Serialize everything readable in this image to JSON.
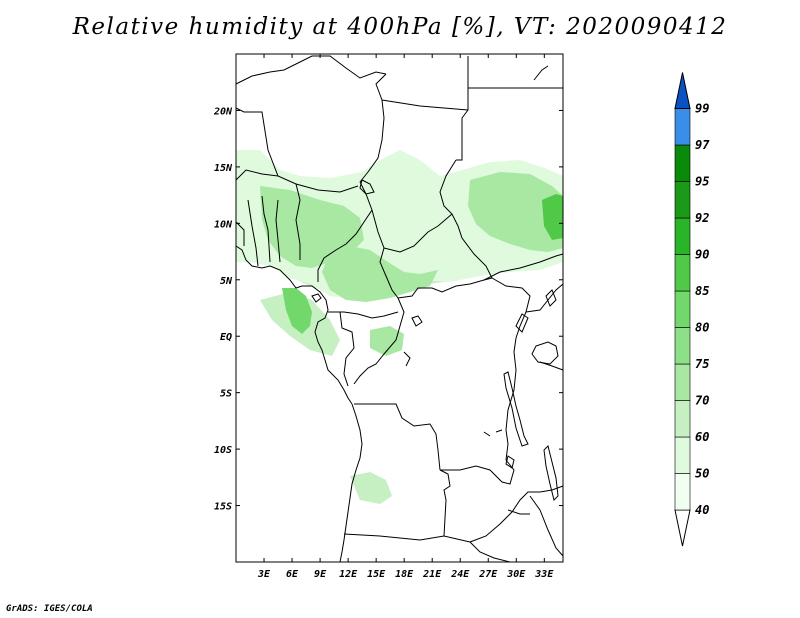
{
  "title": "Relative humidity at 400hPa [%], VT: 2020090412",
  "footer": "GrADS: IGES/COLA",
  "map": {
    "lon_range": [
      0,
      35
    ],
    "lat_range": [
      -20,
      25
    ],
    "lon_ticks": [
      "3E",
      "6E",
      "9E",
      "12E",
      "15E",
      "18E",
      "21E",
      "24E",
      "27E",
      "30E",
      "33E"
    ],
    "lat_ticks": [
      "20N",
      "15N",
      "10N",
      "5N",
      "EQ",
      "5S",
      "10S",
      "15S"
    ],
    "colors": {
      "coast": "#000000",
      "background": "#ffffff"
    }
  },
  "colorbar": {
    "labels": [
      "40",
      "50",
      "60",
      "70",
      "75",
      "80",
      "85",
      "90",
      "92",
      "95",
      "97",
      "99"
    ],
    "colors": [
      "#f0fff0",
      "#e0fade",
      "#c6f0c2",
      "#a8e8a2",
      "#8ee088",
      "#72d86c",
      "#50c848",
      "#2ab428",
      "#1a9a18",
      "#0a8a0a",
      "#3a8ee8",
      "#1c6ed8",
      "#0a52c2"
    ],
    "top_arrow_color": "#0a52c2",
    "bottom_arrow_color": "#ffffff"
  },
  "humidity_field": [
    {
      "region": "west-africa-band",
      "level": "50"
    },
    {
      "region": "sahel-north",
      "level": "40"
    },
    {
      "region": "nigeria-cameroon",
      "level": "60"
    },
    {
      "region": "gabon-coast",
      "level": "75"
    },
    {
      "region": "sudan-east",
      "level": "60"
    },
    {
      "region": "ethiopia-edge",
      "level": "80"
    },
    {
      "region": "angola-patch",
      "level": "50"
    }
  ]
}
